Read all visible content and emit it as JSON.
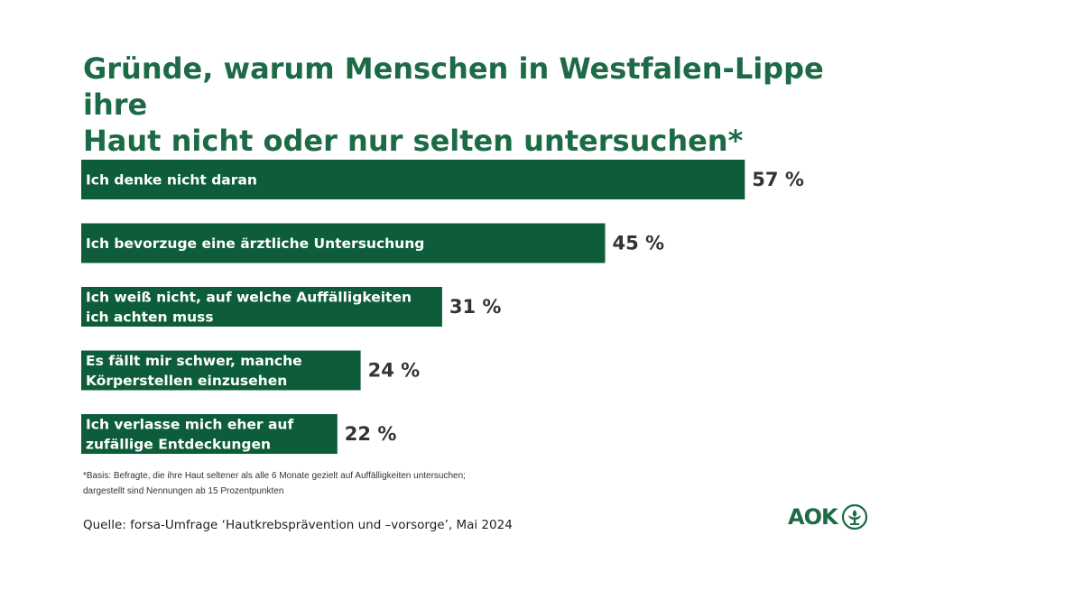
{
  "title_lines": [
    "Gründe, warum Menschen in Westfalen-Lippe ihre",
    "Haut nicht oder nur selten untersuchen*"
  ],
  "chart_data": {
    "type": "bar",
    "orientation": "horizontal",
    "title": "Gründe, warum Menschen in Westfalen-Lippe ihre Haut nicht oder nur selten untersuchen*",
    "categories": [
      [
        "Ich denke nicht daran"
      ],
      [
        "Ich bevorzuge eine ärztliche Untersuchung"
      ],
      [
        "Ich weiß nicht, auf welche Auffälligkeiten",
        "ich achten muss"
      ],
      [
        "Es fällt mir schwer, manche",
        "Körperstellen einzusehen"
      ],
      [
        "Ich verlasse mich eher auf",
        "zufällige Entdeckungen"
      ]
    ],
    "values": [
      57,
      45,
      31,
      24,
      22
    ],
    "value_labels": [
      "57 %",
      "45 %",
      "31 %",
      "24 %",
      "22 %"
    ],
    "unit": "%",
    "xlim": [
      0,
      100
    ],
    "grid": false,
    "bar_color": "#0d5c3a"
  },
  "footnote_lines": [
    "*Basis: Befragte, die ihre Haut seltener als alle 6 Monate gezielt auf Auffälligkeiten untersuchen;",
    "dargestellt sind Nennungen ab 15 Prozentpunkten"
  ],
  "source": "Quelle: forsa-Umfrage ‘Hautkrebsprävention und –vorsorge’, Mai 2024",
  "logo": {
    "text": "AOK",
    "icon": "aok-tree-icon",
    "color": "#1c6a46"
  }
}
